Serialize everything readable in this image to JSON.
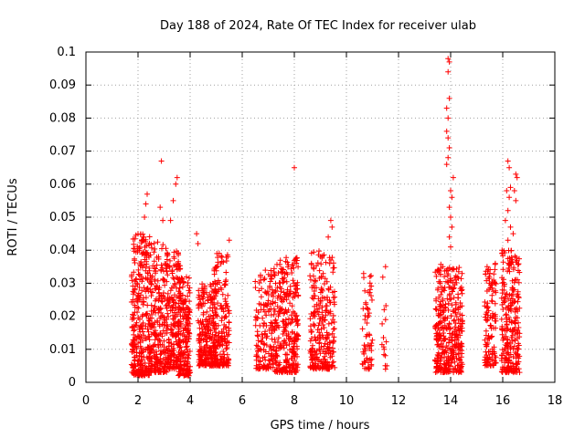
{
  "chart_data": {
    "type": "scatter",
    "title": "Day 188 of 2024, Rate Of TEC Index for receiver ulab",
    "xlabel": "GPS time / hours",
    "ylabel": "ROTI / TECUs",
    "xlim": [
      0,
      18
    ],
    "ylim": [
      0,
      0.1
    ],
    "xticks": [
      "0",
      "2",
      "4",
      "6",
      "8",
      "10",
      "12",
      "14",
      "16",
      "18"
    ],
    "yticks": [
      "0",
      "0.01",
      "0.02",
      "0.03",
      "0.04",
      "0.05",
      "0.06",
      "0.07",
      "0.08",
      "0.09",
      "0.1"
    ],
    "grid": true,
    "marker": "+",
    "color": "#ff0000",
    "clusters": [
      {
        "x_start": 1.75,
        "x_end": 2.45,
        "y_min": 0.002,
        "y_max": 0.045,
        "count": 320
      },
      {
        "x_start": 2.45,
        "x_end": 3.1,
        "y_min": 0.003,
        "y_max": 0.043,
        "count": 240
      },
      {
        "x_start": 3.1,
        "x_end": 3.65,
        "y_min": 0.004,
        "y_max": 0.04,
        "count": 220
      },
      {
        "x_start": 3.55,
        "x_end": 4.0,
        "y_min": 0.002,
        "y_max": 0.032,
        "count": 200
      },
      {
        "x_start": 4.3,
        "x_end": 5.0,
        "y_min": 0.005,
        "y_max": 0.03,
        "count": 240
      },
      {
        "x_start": 4.9,
        "x_end": 5.5,
        "y_min": 0.005,
        "y_max": 0.04,
        "count": 180
      },
      {
        "x_start": 6.5,
        "x_end": 7.2,
        "y_min": 0.004,
        "y_max": 0.034,
        "count": 150
      },
      {
        "x_start": 7.2,
        "x_end": 8.15,
        "y_min": 0.003,
        "y_max": 0.038,
        "count": 300
      },
      {
        "x_start": 8.6,
        "x_end": 9.55,
        "y_min": 0.004,
        "y_max": 0.04,
        "count": 260
      },
      {
        "x_start": 10.6,
        "x_end": 11.0,
        "y_min": 0.004,
        "y_max": 0.035,
        "count": 60
      },
      {
        "x_start": 11.35,
        "x_end": 11.55,
        "y_min": 0.003,
        "y_max": 0.035,
        "count": 10
      },
      {
        "x_start": 13.4,
        "x_end": 14.0,
        "y_min": 0.003,
        "y_max": 0.036,
        "count": 220
      },
      {
        "x_start": 14.0,
        "x_end": 14.45,
        "y_min": 0.003,
        "y_max": 0.035,
        "count": 160
      },
      {
        "x_start": 15.3,
        "x_end": 15.75,
        "y_min": 0.005,
        "y_max": 0.036,
        "count": 120
      },
      {
        "x_start": 15.95,
        "x_end": 16.65,
        "y_min": 0.003,
        "y_max": 0.04,
        "count": 260
      }
    ],
    "outliers": [
      {
        "x": 2.9,
        "y": 0.067
      },
      {
        "x": 3.5,
        "y": 0.062
      },
      {
        "x": 3.45,
        "y": 0.06
      },
      {
        "x": 3.35,
        "y": 0.055
      },
      {
        "x": 2.35,
        "y": 0.057
      },
      {
        "x": 2.3,
        "y": 0.054
      },
      {
        "x": 2.25,
        "y": 0.05
      },
      {
        "x": 2.85,
        "y": 0.053
      },
      {
        "x": 2.95,
        "y": 0.049
      },
      {
        "x": 3.25,
        "y": 0.049
      },
      {
        "x": 4.25,
        "y": 0.045
      },
      {
        "x": 4.3,
        "y": 0.042
      },
      {
        "x": 5.5,
        "y": 0.043
      },
      {
        "x": 8.0,
        "y": 0.065
      },
      {
        "x": 9.4,
        "y": 0.049
      },
      {
        "x": 9.45,
        "y": 0.047
      },
      {
        "x": 9.3,
        "y": 0.044
      },
      {
        "x": 13.9,
        "y": 0.098
      },
      {
        "x": 13.95,
        "y": 0.097
      },
      {
        "x": 13.9,
        "y": 0.094
      },
      {
        "x": 13.95,
        "y": 0.086
      },
      {
        "x": 13.85,
        "y": 0.083
      },
      {
        "x": 13.9,
        "y": 0.08
      },
      {
        "x": 13.85,
        "y": 0.076
      },
      {
        "x": 13.9,
        "y": 0.074
      },
      {
        "x": 13.95,
        "y": 0.071
      },
      {
        "x": 13.9,
        "y": 0.068
      },
      {
        "x": 13.85,
        "y": 0.066
      },
      {
        "x": 14.1,
        "y": 0.062
      },
      {
        "x": 14.0,
        "y": 0.058
      },
      {
        "x": 14.05,
        "y": 0.056
      },
      {
        "x": 13.95,
        "y": 0.053
      },
      {
        "x": 14.0,
        "y": 0.05
      },
      {
        "x": 14.05,
        "y": 0.047
      },
      {
        "x": 13.95,
        "y": 0.044
      },
      {
        "x": 14.0,
        "y": 0.041
      },
      {
        "x": 16.2,
        "y": 0.067
      },
      {
        "x": 16.25,
        "y": 0.065
      },
      {
        "x": 16.5,
        "y": 0.063
      },
      {
        "x": 16.55,
        "y": 0.062
      },
      {
        "x": 16.15,
        "y": 0.058
      },
      {
        "x": 16.3,
        "y": 0.059
      },
      {
        "x": 16.45,
        "y": 0.058
      },
      {
        "x": 16.25,
        "y": 0.056
      },
      {
        "x": 16.5,
        "y": 0.055
      },
      {
        "x": 16.2,
        "y": 0.052
      },
      {
        "x": 16.1,
        "y": 0.049
      },
      {
        "x": 16.3,
        "y": 0.047
      },
      {
        "x": 16.4,
        "y": 0.045
      },
      {
        "x": 16.2,
        "y": 0.043
      },
      {
        "x": 11.5,
        "y": 0.035
      },
      {
        "x": 11.45,
        "y": 0.022
      },
      {
        "x": 11.5,
        "y": 0.019
      },
      {
        "x": 11.45,
        "y": 0.01
      },
      {
        "x": 11.55,
        "y": 0.005
      },
      {
        "x": 11.5,
        "y": 0.004
      }
    ]
  }
}
